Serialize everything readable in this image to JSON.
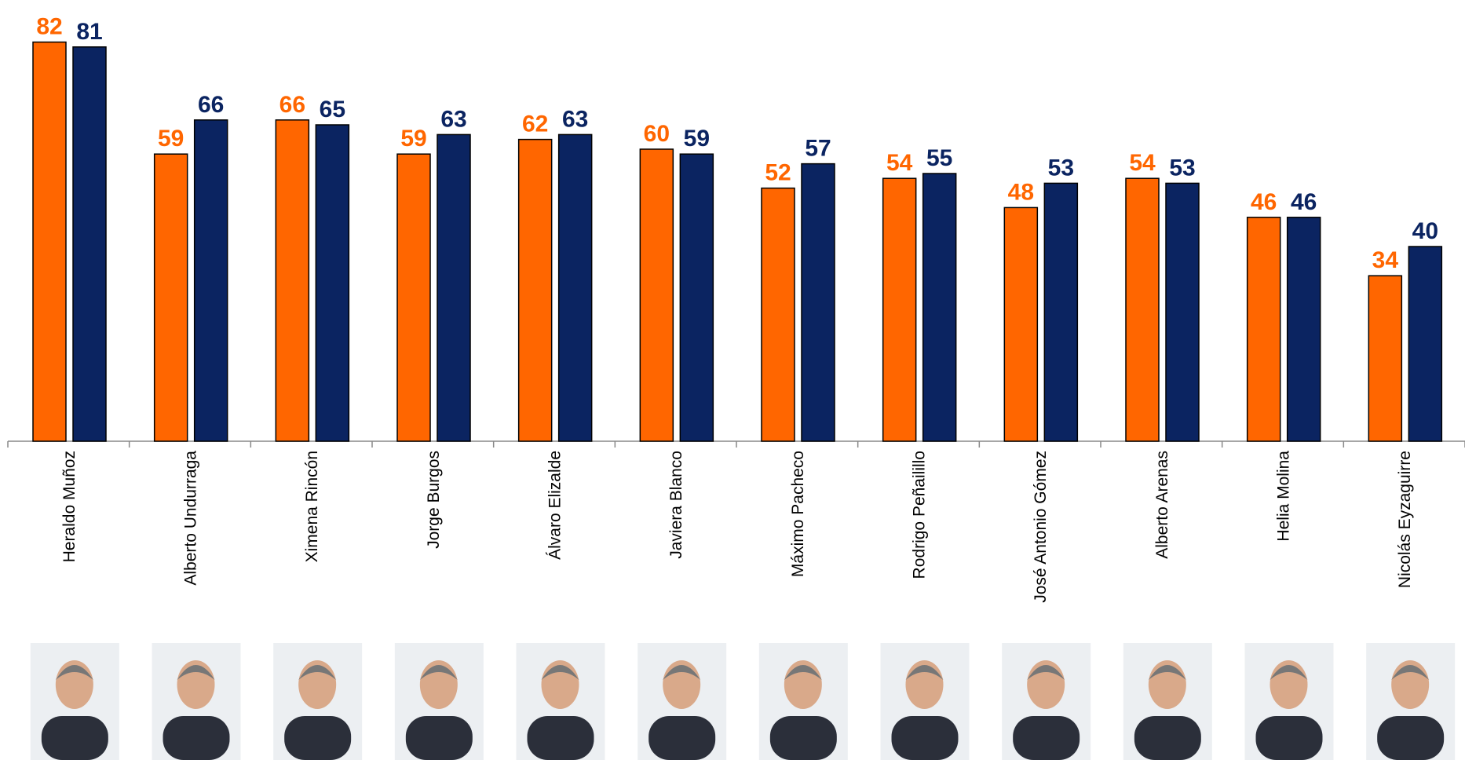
{
  "chart_data": {
    "type": "bar",
    "categories": [
      "Heraldo Muñoz",
      "Alberto Undurraga",
      "Ximena Rincón",
      "Jorge Burgos",
      "Álvaro Elizalde",
      "Javiera Blanco",
      "Máximo Pacheco",
      "Rodrigo Peñailillo",
      "José Antonio Gómez",
      "Alberto Arenas",
      "Helia Molina",
      "Nicolás Eyzaguirre"
    ],
    "series": [
      {
        "color": "#ff6600",
        "values": [
          82,
          59,
          66,
          59,
          62,
          60,
          52,
          54,
          48,
          54,
          46,
          34
        ]
      },
      {
        "color": "#0b2461",
        "values": [
          81,
          66,
          65,
          63,
          63,
          59,
          57,
          55,
          53,
          53,
          46,
          40
        ]
      }
    ],
    "ylim": [
      0,
      90
    ]
  }
}
